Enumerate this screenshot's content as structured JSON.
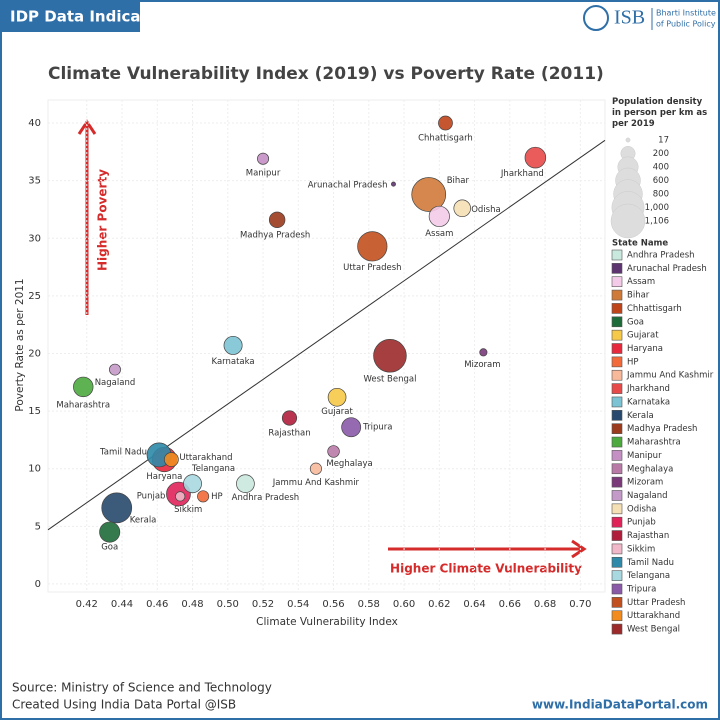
{
  "header": {
    "tag": "IDP Data Indicators",
    "logo": {
      "name": "ISB",
      "line1": "Bharti Institute",
      "line2": "of Public Policy"
    }
  },
  "chart_data": {
    "type": "scatter",
    "title": "Climate Vulnerability Index (2019) vs Poverty Rate (2011)",
    "x_label": "Climate Vulnerability Index",
    "y_label": "Poverty Rate as per 2011",
    "xlim": [
      0.398,
      0.714
    ],
    "xticks": [
      0.42,
      0.44,
      0.46,
      0.48,
      {
        "value": 0.5,
        "label": "0.50"
      },
      0.52,
      0.54,
      0.56,
      0.58,
      {
        "value": 0.6,
        "label": "0.60"
      },
      0.62,
      0.64,
      0.66,
      0.68,
      {
        "value": 0.7,
        "label": "0.70"
      }
    ],
    "ylim": [
      -0.7,
      42
    ],
    "yticks": [
      0,
      5,
      10,
      15,
      20,
      25,
      30,
      35,
      40
    ],
    "grid": true,
    "trendline": {
      "x": [
        0.398,
        0.714
      ],
      "values": [
        4.7,
        38.5
      ]
    },
    "size_legend_title": "Population density in person per km as per 2019",
    "size_legend": [
      17,
      200,
      400,
      600,
      800,
      {
        "value": 1000,
        "label": "1,000"
      },
      {
        "value": 1106,
        "label": "1,106"
      }
    ],
    "color_legend_title": "State Name",
    "series": [
      {
        "name": "Andhra Pradesh",
        "color": "#c9e8de",
        "x": [
          0.51
        ],
        "values": [
          8.7
        ],
        "size": [
          308
        ]
      },
      {
        "name": "Arunachal Pradesh",
        "color": "#5e3470",
        "x": [
          0.594
        ],
        "values": [
          34.7
        ],
        "size": [
          17
        ]
      },
      {
        "name": "Assam",
        "color": "#f3cbe9",
        "x": [
          0.62
        ],
        "values": [
          31.9
        ],
        "size": [
          398
        ]
      },
      {
        "name": "Bihar",
        "color": "#d07a3a",
        "x": [
          0.614
        ],
        "values": [
          33.8
        ],
        "size": [
          1106
        ]
      },
      {
        "name": "Chhattisgarh",
        "color": "#c0441a",
        "x": [
          0.6235
        ],
        "values": [
          40.0
        ],
        "size": [
          189
        ]
      },
      {
        "name": "Goa",
        "color": "#1e6b3a",
        "x": [
          0.433
        ],
        "values": [
          4.5
        ],
        "size": [
          394
        ]
      },
      {
        "name": "Gujarat",
        "color": "#f7c948",
        "x": [
          0.562
        ],
        "values": [
          16.2
        ],
        "size": [
          308
        ]
      },
      {
        "name": "Haryana",
        "color": "#e8283c",
        "x": [
          0.464
        ],
        "values": [
          10.8
        ],
        "size": [
          573
        ]
      },
      {
        "name": "HP",
        "color": "#f26a3a",
        "x": [
          0.486
        ],
        "values": [
          7.6
        ],
        "size": [
          123
        ]
      },
      {
        "name": "Jammu And Kashmir",
        "color": "#f7b99a",
        "x": [
          0.55
        ],
        "values": [
          10.0
        ],
        "size": [
          124
        ]
      },
      {
        "name": "Jharkhand",
        "color": "#e84a4a",
        "x": [
          0.6745
        ],
        "values": [
          37.0
        ],
        "size": [
          414
        ]
      },
      {
        "name": "Karnataka",
        "color": "#7cc3d4",
        "x": [
          0.503
        ],
        "values": [
          20.7
        ],
        "size": [
          319
        ]
      },
      {
        "name": "Kerala",
        "color": "#27496d",
        "x": [
          0.437
        ],
        "values": [
          6.6
        ],
        "size": [
          860
        ]
      },
      {
        "name": "Madhya Pradesh",
        "color": "#9b3a1c",
        "x": [
          0.528
        ],
        "values": [
          31.6
        ],
        "size": [
          236
        ]
      },
      {
        "name": "Maharashtra",
        "color": "#4caa3f",
        "x": [
          0.418
        ],
        "values": [
          17.1
        ],
        "size": [
          370
        ]
      },
      {
        "name": "Manipur",
        "color": "#c490c4",
        "x": [
          0.52
        ],
        "values": [
          36.9
        ],
        "size": [
          122
        ]
      },
      {
        "name": "Meghalaya",
        "color": "#b97aa8",
        "x": [
          0.56
        ],
        "values": [
          11.5
        ],
        "size": [
          132
        ]
      },
      {
        "name": "Mizoram",
        "color": "#7a3a7a",
        "x": [
          0.645
        ],
        "values": [
          20.1
        ],
        "size": [
          52
        ]
      },
      {
        "name": "Nagaland",
        "color": "#c49ac8",
        "x": [
          0.436
        ],
        "values": [
          18.6
        ],
        "size": [
          119
        ]
      },
      {
        "name": "Odisha",
        "color": "#f5e0b5",
        "x": [
          0.633
        ],
        "values": [
          32.6
        ],
        "size": [
          270
        ]
      },
      {
        "name": "Punjab",
        "color": "#e0245a",
        "x": [
          0.472
        ],
        "values": [
          7.8
        ],
        "size": [
          551
        ]
      },
      {
        "name": "Rajasthan",
        "color": "#b01e3c",
        "x": [
          0.535
        ],
        "values": [
          14.4
        ],
        "size": [
          200
        ]
      },
      {
        "name": "Sikkim",
        "color": "#f0b8c8",
        "x": [
          0.473
        ],
        "values": [
          7.6
        ],
        "size": [
          86
        ]
      },
      {
        "name": "Tamil Nadu",
        "color": "#2e8aa8",
        "x": [
          0.461
        ],
        "values": [
          11.2
        ],
        "size": [
          555
        ]
      },
      {
        "name": "Telangana",
        "color": "#a8d8e0",
        "x": [
          0.48
        ],
        "values": [
          8.7
        ],
        "size": [
          312
        ]
      },
      {
        "name": "Tripura",
        "color": "#8a5aa8",
        "x": [
          0.57
        ],
        "values": [
          13.6
        ],
        "size": [
          350
        ]
      },
      {
        "name": "Uttar Pradesh",
        "color": "#c2501e",
        "x": [
          0.582
        ],
        "values": [
          29.3
        ],
        "size": [
          829
        ]
      },
      {
        "name": "Uttarakhand",
        "color": "#f28c1e",
        "x": [
          0.468
        ],
        "values": [
          10.8
        ],
        "size": [
          189
        ]
      },
      {
        "name": "West Bengal",
        "color": "#9c2a2a",
        "x": [
          0.592
        ],
        "values": [
          19.8
        ],
        "size": [
          1029
        ]
      }
    ],
    "annotations": {
      "y_arrow": "Higher Poverty",
      "x_arrow": "Higher Climate Vulnerability"
    }
  },
  "footer": {
    "source": "Source: Ministry of Science and Technology",
    "credit": "Created Using India Data Portal @ISB",
    "url": "www.IndiaDataPortal.com"
  }
}
